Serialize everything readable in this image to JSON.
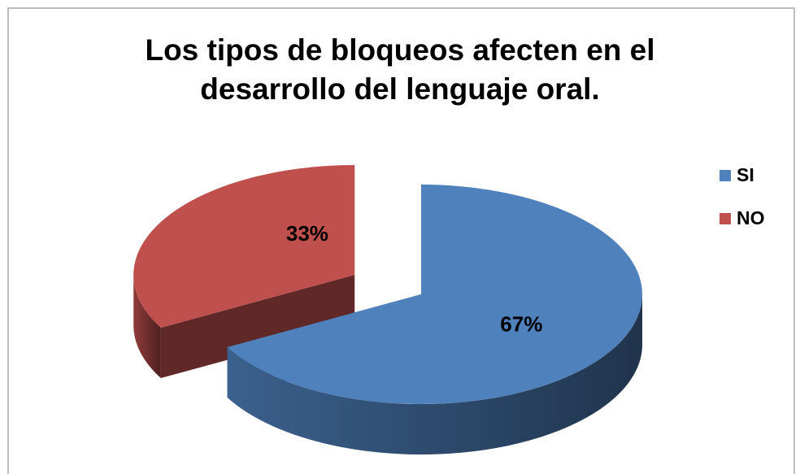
{
  "chart_data": {
    "type": "pie3d",
    "title": "Los tipos de bloqueos afecten en el desarrollo del lenguaje oral.",
    "categories": [
      "SI",
      "NO"
    ],
    "values": [
      67,
      33
    ],
    "value_labels": [
      "67%",
      "33%"
    ],
    "colors": [
      "#4f81bd",
      "#c0504d"
    ],
    "legend": "right"
  }
}
